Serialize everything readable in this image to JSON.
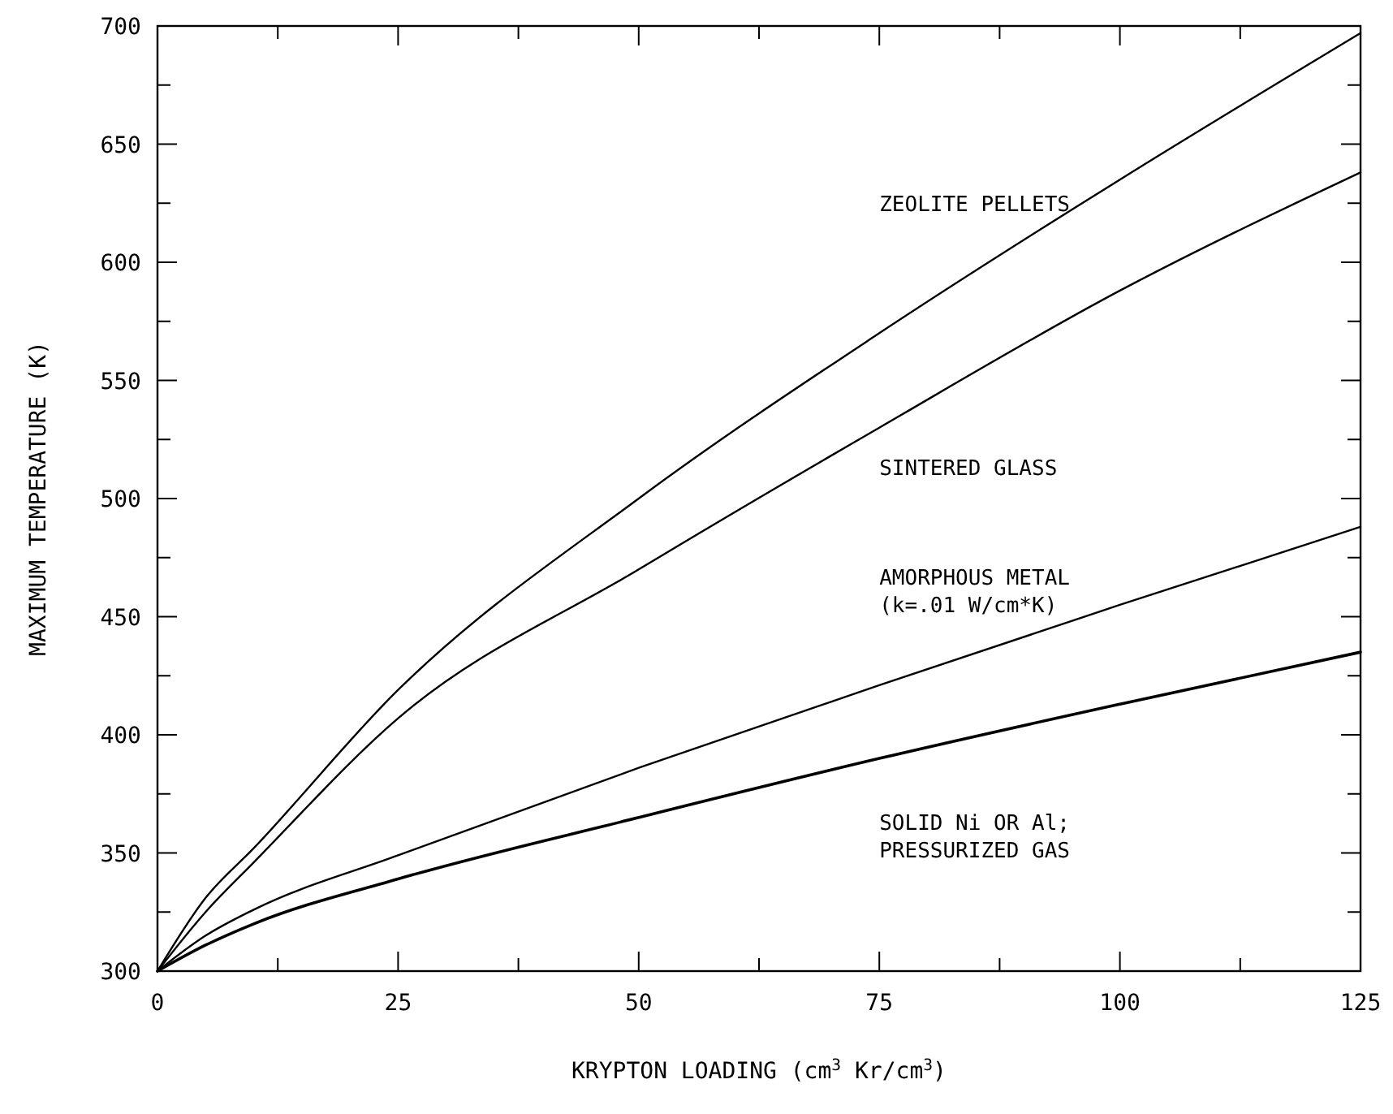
{
  "chart_data": {
    "type": "line",
    "xlabel": "KRYPTON LOADING (cm$^{3}$ Kr/cm$^{3}$)",
    "ylabel": "MAXIMUM TEMPERATURE (K)",
    "x": [
      0,
      5,
      10,
      25,
      50,
      75,
      100,
      125
    ],
    "series": [
      {
        "name": "ZEOLITE PELLETS",
        "color": "#000000",
        "values": [
          300,
          331,
          352,
          419,
          500,
          570,
          635,
          697
        ]
      },
      {
        "name": "SINTERED GLASS",
        "color": "#000000",
        "values": [
          300,
          325,
          346,
          407,
          470,
          530,
          588,
          638
        ]
      },
      {
        "name": "AMORPHOUS METAL\n(k=.01 W/cm*K)",
        "color": "#000000",
        "values": [
          300,
          315,
          326,
          349,
          386,
          421,
          455,
          488
        ]
      },
      {
        "name": "SOLID Ni OR Al;\nPRESSURIZED GAS",
        "color": "#000000",
        "values": [
          300,
          311,
          320,
          339,
          365,
          390,
          413,
          435
        ]
      }
    ],
    "xlim": [
      0,
      125
    ],
    "ylim": [
      300,
      700
    ],
    "xticks": [
      0,
      {
        "value": 12.5,
        "label": null
      },
      25,
      {
        "value": 37.5,
        "label": null
      },
      50,
      {
        "value": 62.5,
        "label": null
      },
      75,
      {
        "value": 87.5,
        "label": null
      },
      100,
      {
        "value": 112.5,
        "label": null
      },
      125
    ],
    "yticks": [
      300,
      {
        "value": 325,
        "label": null
      },
      350,
      {
        "value": 375,
        "label": null
      },
      400,
      {
        "value": 425,
        "label": null
      },
      450,
      {
        "value": 475,
        "label": null
      },
      500,
      {
        "value": 525,
        "label": null
      },
      550,
      {
        "value": 575,
        "label": null
      },
      600,
      {
        "value": 625,
        "label": null
      },
      650,
      {
        "value": 675,
        "label": null
      },
      700
    ],
    "grid": false,
    "marker": "none",
    "line_style": "solid"
  }
}
